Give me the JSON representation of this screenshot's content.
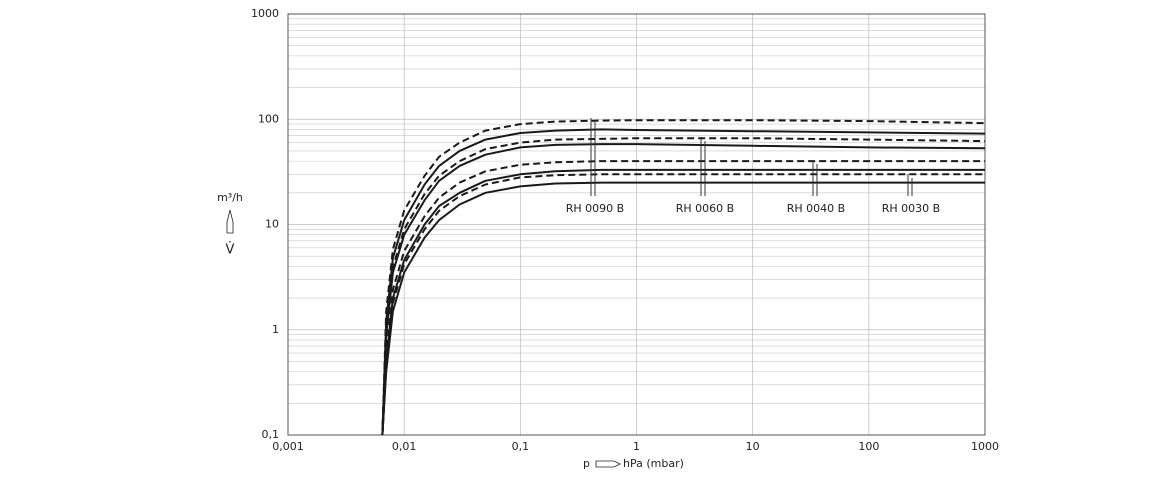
{
  "chart_data": {
    "type": "line",
    "x_symbol": "p",
    "x_unit": "hPa (mbar)",
    "y_unit": "m³/h",
    "y_symbol": "V̇",
    "log_x": true,
    "log_y": true,
    "grid": true,
    "minor_grid": true,
    "xlim": [
      0.001,
      1000
    ],
    "xticks": [
      {
        "value": 0.001,
        "label": "0,001"
      },
      {
        "value": 0.01,
        "label": "0,01"
      },
      {
        "value": 0.1,
        "label": "0,1"
      },
      1,
      10,
      100,
      1000
    ],
    "ylim": [
      0.1,
      1000
    ],
    "yticks": [
      {
        "value": 0.1,
        "label": "0,1"
      },
      1,
      10,
      100,
      1000
    ],
    "x": [
      0.0065,
      0.007,
      0.008,
      0.01,
      0.015,
      0.02,
      0.03,
      0.05,
      0.1,
      0.2,
      0.5,
      1,
      10,
      100,
      1000
    ],
    "series": [
      {
        "color": "#1a1a1a",
        "dashed": true,
        "values": [
          0.1,
          1.5,
          5.8,
          13.6,
          29,
          44,
          60,
          78,
          90,
          95,
          97,
          98,
          98,
          96,
          92
        ]
      },
      {
        "color": "#1a1a1a",
        "dashed": false,
        "values": [
          0.1,
          1.2,
          4.8,
          11,
          24,
          36,
          50,
          64,
          74,
          78,
          80,
          79,
          77,
          75,
          73
        ]
      },
      {
        "color": "#1a1a1a",
        "dashed": true,
        "values": [
          0.1,
          1,
          3.9,
          9,
          19.5,
          29,
          40,
          52,
          60,
          64,
          65,
          66,
          66,
          64,
          62
        ]
      },
      {
        "color": "#1a1a1a",
        "dashed": false,
        "values": [
          0.1,
          0.9,
          3.5,
          8,
          17,
          26,
          36,
          46,
          54,
          57,
          58,
          58,
          56,
          54,
          53
        ]
      },
      {
        "color": "#1a1a1a",
        "dashed": true,
        "values": [
          0.1,
          0.6,
          2.4,
          5.6,
          12,
          18,
          25,
          32,
          37,
          39,
          40,
          40,
          40,
          40,
          40
        ]
      },
      {
        "color": "#1a1a1a",
        "dashed": false,
        "values": [
          0.1,
          0.5,
          2,
          4.6,
          10,
          15,
          20,
          26,
          30,
          32,
          33,
          33,
          33,
          33,
          33
        ]
      },
      {
        "color": "#1a1a1a",
        "dashed": true,
        "values": [
          0.1,
          0.45,
          1.8,
          4.2,
          9,
          13.5,
          18.6,
          24,
          28,
          29.4,
          30,
          30,
          30,
          30,
          30
        ]
      },
      {
        "color": "#1a1a1a",
        "dashed": false,
        "values": [
          0.1,
          0.4,
          1.5,
          3.5,
          7.5,
          11,
          15.5,
          20,
          23,
          24.5,
          25,
          25,
          25,
          25,
          25
        ]
      }
    ],
    "annotations": [
      "RH 0090 B",
      "RH 0060 B",
      "RH 0040 B",
      "RH 0030 B"
    ]
  }
}
